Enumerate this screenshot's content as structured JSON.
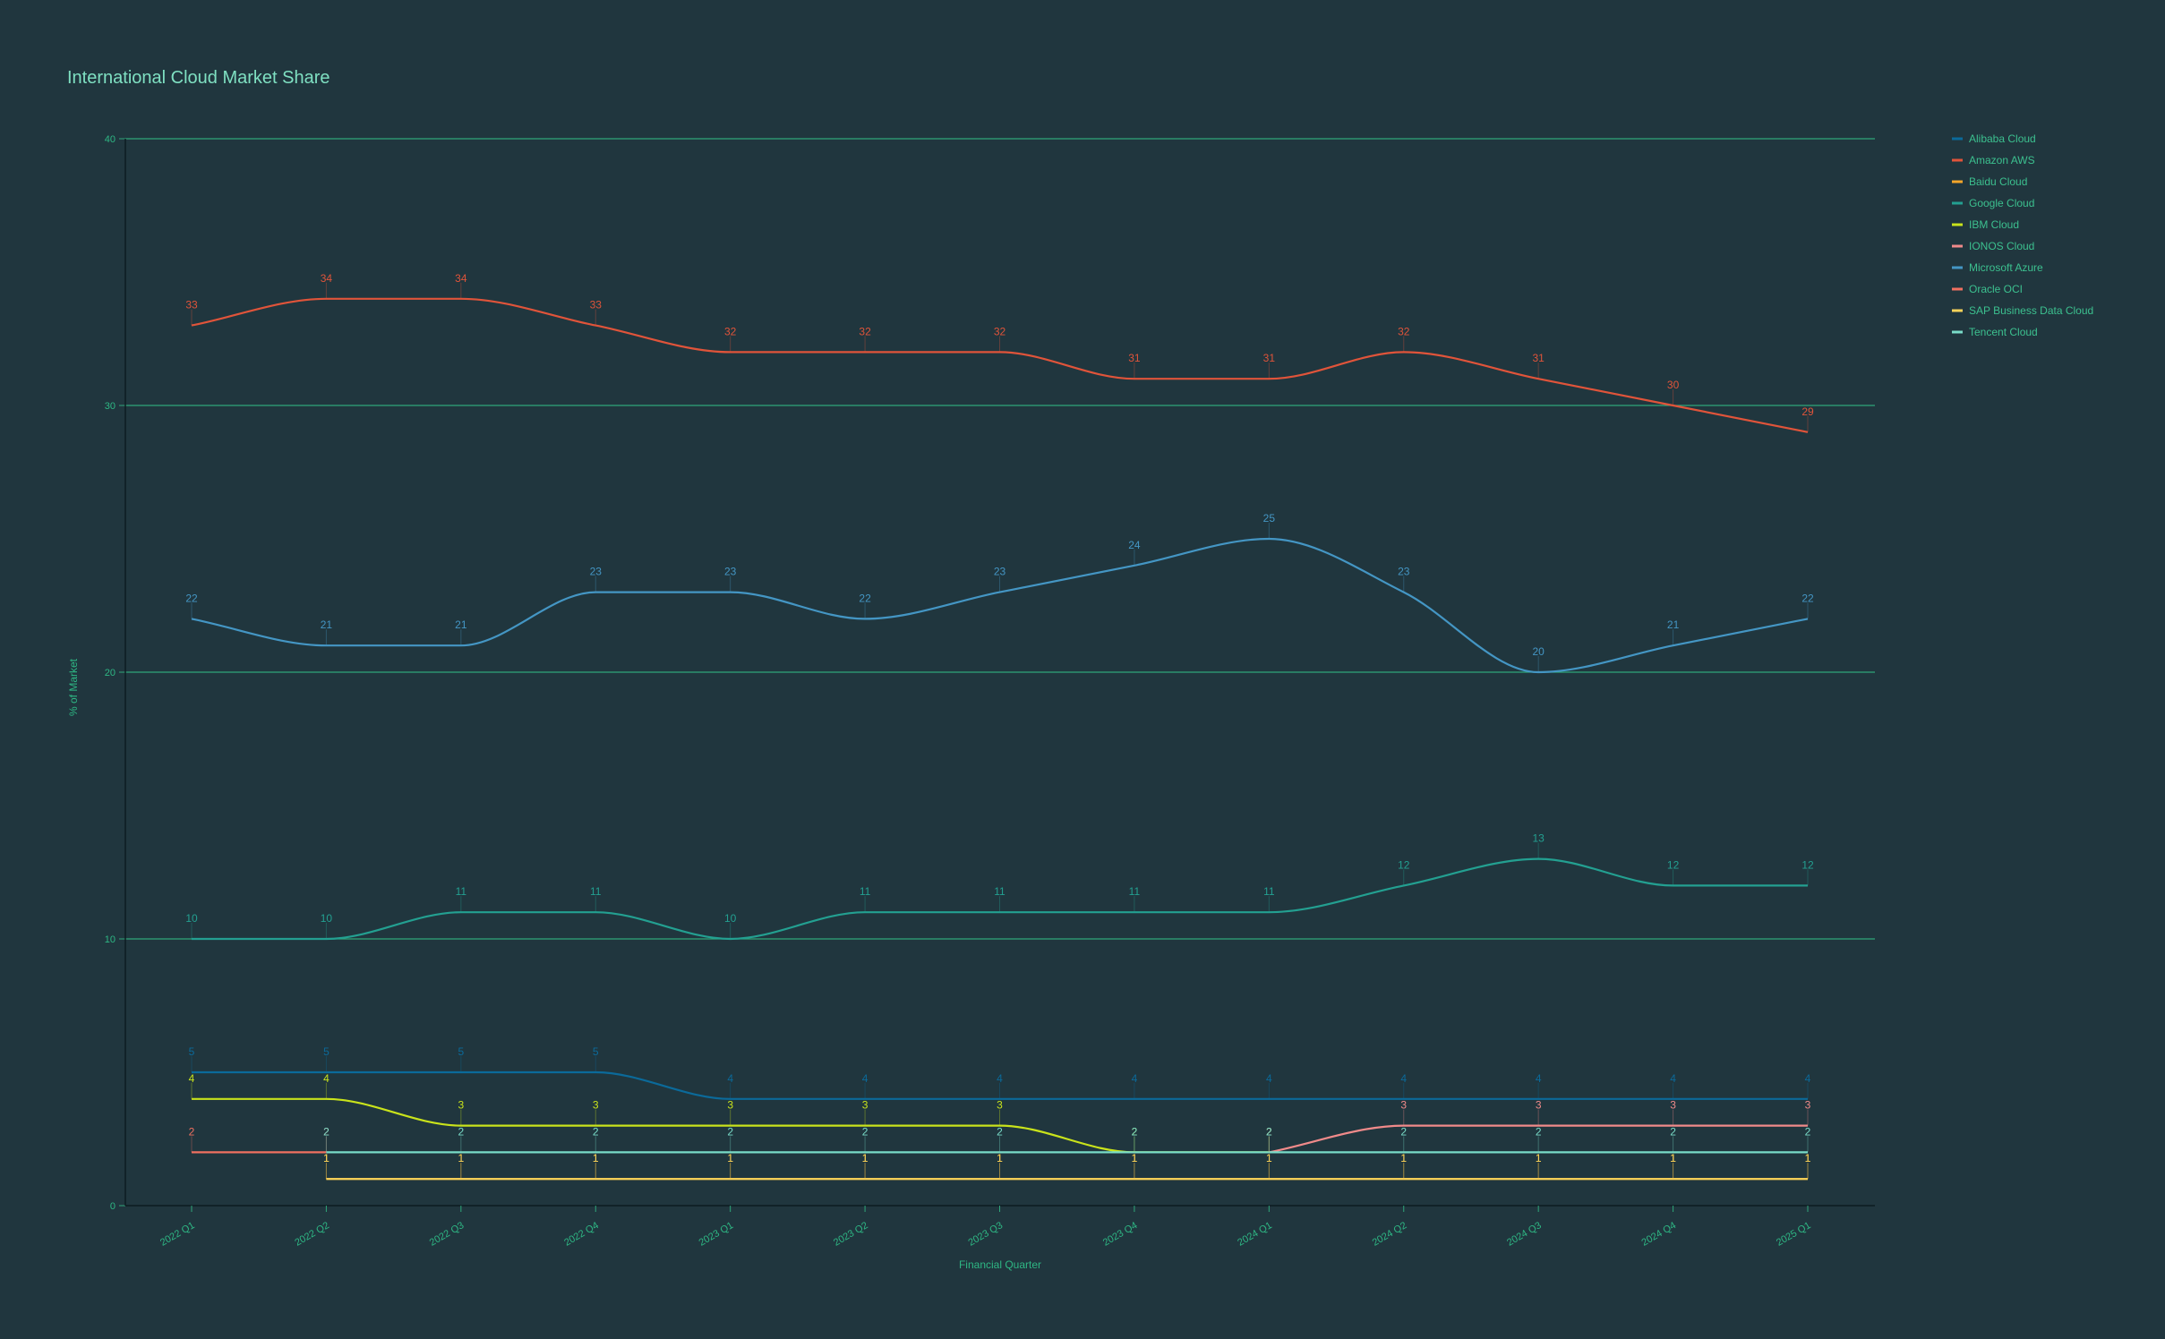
{
  "chart_data": {
    "type": "line",
    "title": "International Cloud Market Share",
    "xlabel": "Financial Quarter",
    "ylabel": "% of Market",
    "ylim": [
      0,
      40
    ],
    "yticks": [
      0,
      10,
      20,
      30,
      40
    ],
    "grid": "horizontal",
    "legend_position": "right",
    "categories": [
      "2022 Q1",
      "2022 Q2",
      "2022 Q3",
      "2022 Q4",
      "2023 Q1",
      "2023 Q2",
      "2023 Q3",
      "2023 Q4",
      "2024 Q1",
      "2024 Q2",
      "2024 Q3",
      "2024 Q4",
      "2025 Q1"
    ],
    "series": [
      {
        "name": "Alibaba Cloud",
        "color": "#0b6a9a",
        "values": [
          5,
          5,
          5,
          5,
          4,
          4,
          4,
          4,
          4,
          4,
          4,
          4,
          4
        ]
      },
      {
        "name": "Amazon AWS",
        "color": "#e0543a",
        "values": [
          33,
          34,
          34,
          33,
          32,
          32,
          32,
          31,
          31,
          32,
          31,
          30,
          29
        ]
      },
      {
        "name": "Baidu Cloud",
        "color": "#f4a62a",
        "values": [
          null,
          1,
          1,
          1,
          1,
          1,
          1,
          1,
          1,
          1,
          1,
          1,
          1
        ]
      },
      {
        "name": "Google Cloud",
        "color": "#23a091",
        "values": [
          10,
          10,
          11,
          11,
          10,
          11,
          11,
          11,
          11,
          12,
          13,
          12,
          12
        ]
      },
      {
        "name": "IBM Cloud",
        "color": "#c9e31b",
        "values": [
          4,
          4,
          3,
          3,
          3,
          3,
          3,
          2,
          2,
          null,
          null,
          null,
          null
        ]
      },
      {
        "name": "IONOS Cloud",
        "color": "#f08a8a",
        "values": [
          null,
          null,
          null,
          null,
          null,
          null,
          null,
          null,
          2,
          3,
          3,
          3,
          3
        ]
      },
      {
        "name": "Microsoft Azure",
        "color": "#4496c4",
        "values": [
          22,
          21,
          21,
          23,
          23,
          22,
          23,
          24,
          25,
          23,
          20,
          21,
          22
        ]
      },
      {
        "name": "Oracle OCI",
        "color": "#f07060",
        "values": [
          2,
          2,
          null,
          null,
          null,
          null,
          null,
          null,
          null,
          null,
          null,
          null,
          null
        ]
      },
      {
        "name": "SAP Business Data Cloud",
        "color": "#f7d35a",
        "values": [
          null,
          1,
          1,
          1,
          1,
          1,
          1,
          1,
          1,
          1,
          1,
          1,
          1
        ]
      },
      {
        "name": "Tencent Cloud",
        "color": "#79dcc8",
        "values": [
          null,
          2,
          2,
          2,
          2,
          2,
          2,
          2,
          2,
          2,
          2,
          2,
          2
        ]
      }
    ]
  }
}
